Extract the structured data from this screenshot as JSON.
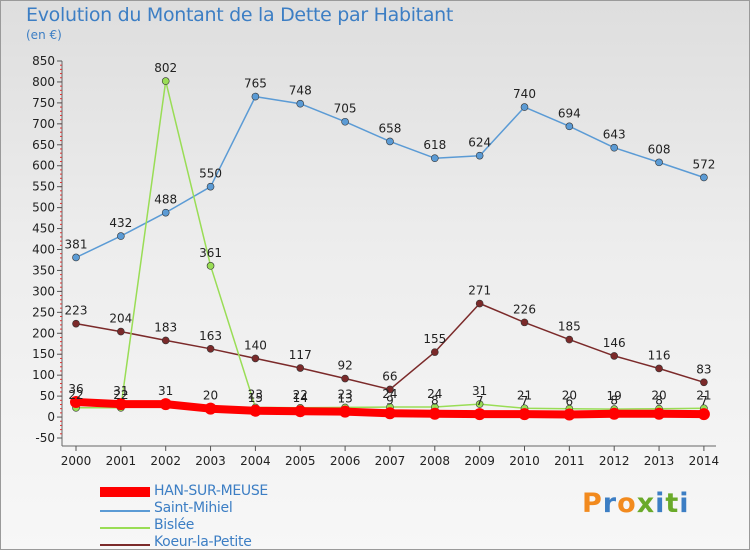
{
  "title": "Evolution du Montant de la Dette par Habitant",
  "subtitle": "(en €)",
  "brand": "Proxiti",
  "chart_data": {
    "type": "line",
    "title": "Evolution du Montant de la Dette par Habitant",
    "ylabel": "(en €)",
    "xlabel": "",
    "x": [
      "2000",
      "2001",
      "2002",
      "2003",
      "2004",
      "2005",
      "2006",
      "2007",
      "2008",
      "2009",
      "2010",
      "2011",
      "2012",
      "2013",
      "2014"
    ],
    "ylim": [
      -50,
      850
    ],
    "yticks": [
      -50,
      0,
      50,
      100,
      150,
      200,
      250,
      300,
      350,
      400,
      450,
      500,
      550,
      600,
      650,
      700,
      750,
      800,
      850
    ],
    "grid": false,
    "legend_position": "bottom-left",
    "series": [
      {
        "name": "HAN-SUR-MEUSE",
        "color": "#ff0000",
        "values": [
          36,
          31,
          31,
          20,
          15,
          14,
          13,
          9,
          8,
          7,
          7,
          6,
          8,
          8,
          7
        ],
        "labels": [
          "36",
          "31",
          "31",
          "20",
          "15",
          "14",
          "13",
          "9",
          "8",
          "7",
          "7",
          "6",
          "8",
          "8",
          "7"
        ]
      },
      {
        "name": "Saint-Mihiel",
        "color": "#5b9bd5",
        "values": [
          381,
          432,
          488,
          550,
          765,
          748,
          705,
          658,
          618,
          624,
          740,
          694,
          643,
          608,
          572
        ],
        "labels": [
          "381",
          "432",
          "488",
          "550",
          "765",
          "748",
          "705",
          "658",
          "618",
          "624",
          "740",
          "694",
          "643",
          "608",
          "572"
        ]
      },
      {
        "name": "Bislée",
        "color": "#99dd55",
        "values": [
          22,
          22,
          802,
          361,
          23,
          22,
          23,
          24,
          24,
          31,
          21,
          20,
          19,
          20,
          21
        ],
        "labels": [
          "22",
          "22",
          "802",
          "361",
          "23",
          "22",
          "23",
          "24",
          "24",
          "31",
          "21",
          "20",
          "19",
          "20",
          "21"
        ]
      },
      {
        "name": "Koeur-la-Petite",
        "color": "#7b2a2a",
        "values": [
          223,
          204,
          183,
          163,
          140,
          117,
          92,
          66,
          155,
          271,
          226,
          185,
          146,
          116,
          83
        ],
        "labels": [
          "223",
          "204",
          "183",
          "163",
          "140",
          "117",
          "92",
          "66",
          "155",
          "271",
          "226",
          "185",
          "146",
          "116",
          "83"
        ]
      }
    ]
  }
}
